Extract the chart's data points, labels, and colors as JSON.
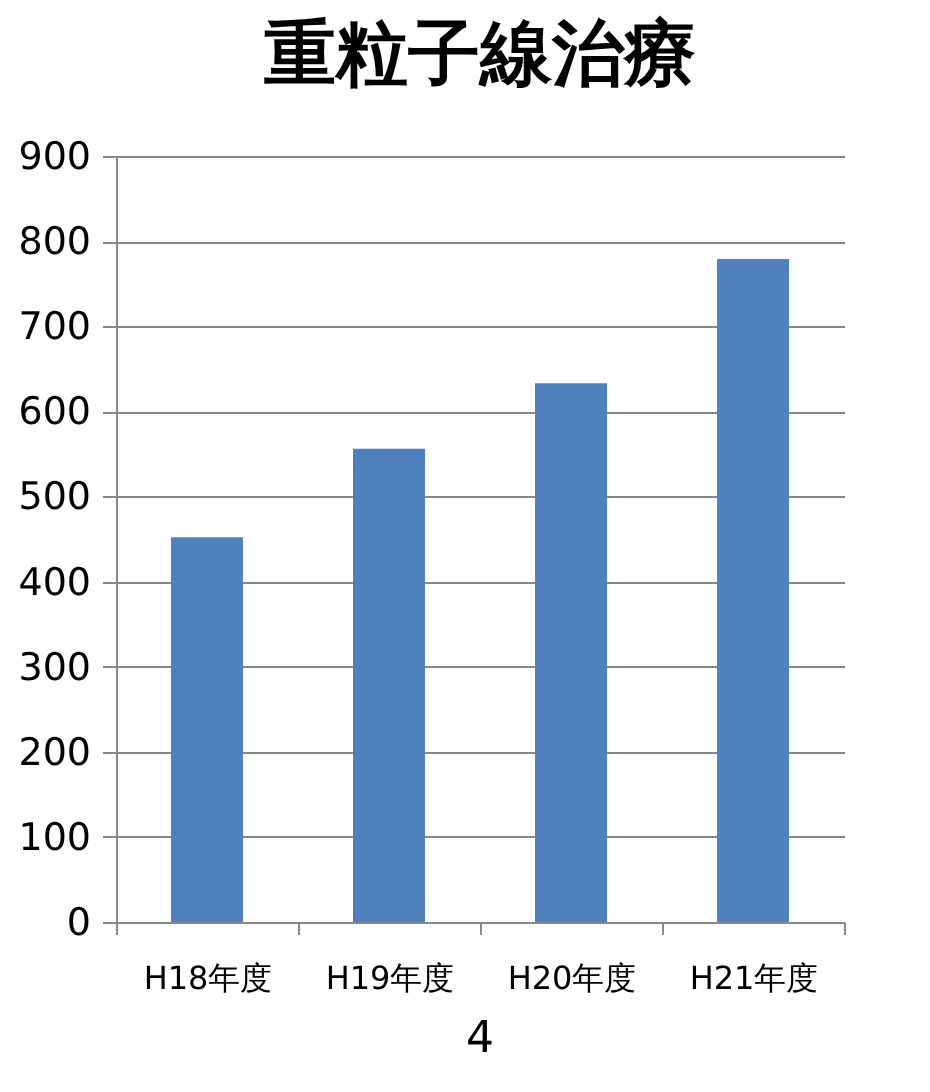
{
  "chart_data": {
    "type": "bar",
    "title": "重粒子線治療",
    "categories": [
      "H18年度",
      "H19年度",
      "H20年度",
      "H21年度"
    ],
    "values": [
      452,
      556,
      633,
      779
    ],
    "color": "#4f81bd",
    "ylim": [
      0,
      900
    ],
    "yticks": [
      0,
      100,
      200,
      300,
      400,
      500,
      600,
      700,
      800,
      900
    ],
    "grid": "y",
    "annotations": [
      "4"
    ]
  }
}
